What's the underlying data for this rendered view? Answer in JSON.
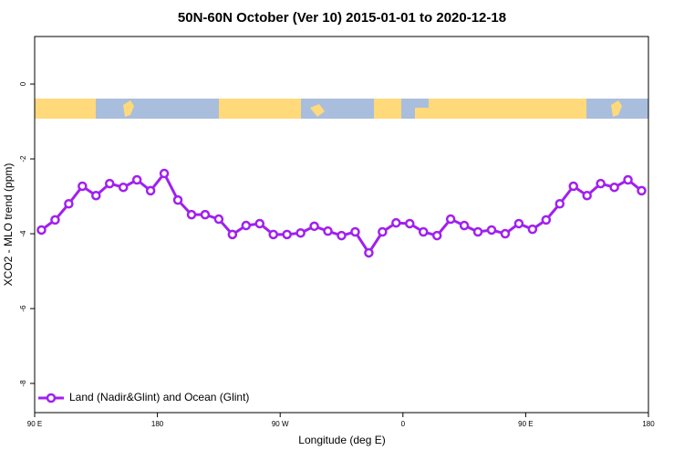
{
  "chart_data": {
    "type": "line",
    "title": "50N-60N October (Ver 10)   2015-01-01 to 2020-12-18",
    "x_label": "Longitude (deg E)",
    "y_label": "XCO2 - MLO trend (ppm)",
    "x": [
      95,
      105,
      115,
      125,
      135,
      145,
      155,
      165,
      175,
      185,
      195,
      205,
      215,
      225,
      235,
      245,
      255,
      265,
      275,
      285,
      295,
      305,
      315,
      325,
      335,
      345,
      355,
      365,
      375,
      385,
      395,
      405,
      415,
      425,
      435,
      445,
      455,
      465,
      475,
      485,
      495,
      505,
      515,
      525,
      535
    ],
    "series": [
      {
        "name": "Land (Nadir&Glint) and Ocean (Glint)",
        "color": "#a020f0",
        "values": [
          -3.9,
          -3.63,
          -3.2,
          -2.73,
          -2.98,
          -2.66,
          -2.76,
          -2.56,
          -2.85,
          -2.39,
          -3.1,
          -3.49,
          -3.49,
          -3.61,
          -4.02,
          -3.78,
          -3.73,
          -4.02,
          -4.02,
          -3.98,
          -3.8,
          -3.93,
          -4.05,
          -3.95,
          -4.51,
          -3.95,
          -3.71,
          -3.73,
          -3.95,
          -4.05,
          -3.61,
          -3.78,
          -3.95,
          -3.9,
          -4.0,
          -3.73,
          -3.88,
          -3.63,
          -3.2,
          -2.73,
          -2.98,
          -2.66,
          -2.76,
          -2.56,
          -2.85
        ]
      }
    ],
    "xlim": [
      90,
      540
    ],
    "xticks": [
      {
        "value": 90,
        "label": "90 E"
      },
      180,
      {
        "value": 270,
        "label": "90 W"
      },
      {
        "value": 360,
        "label": "0"
      },
      {
        "value": 450,
        "label": "90 E"
      },
      {
        "value": 540,
        "label": "180"
      }
    ],
    "ylim": [
      -8.78,
      1.27
    ],
    "yticks": [
      0,
      -2,
      -4,
      -6,
      -8
    ],
    "legend": "bottom-left"
  }
}
